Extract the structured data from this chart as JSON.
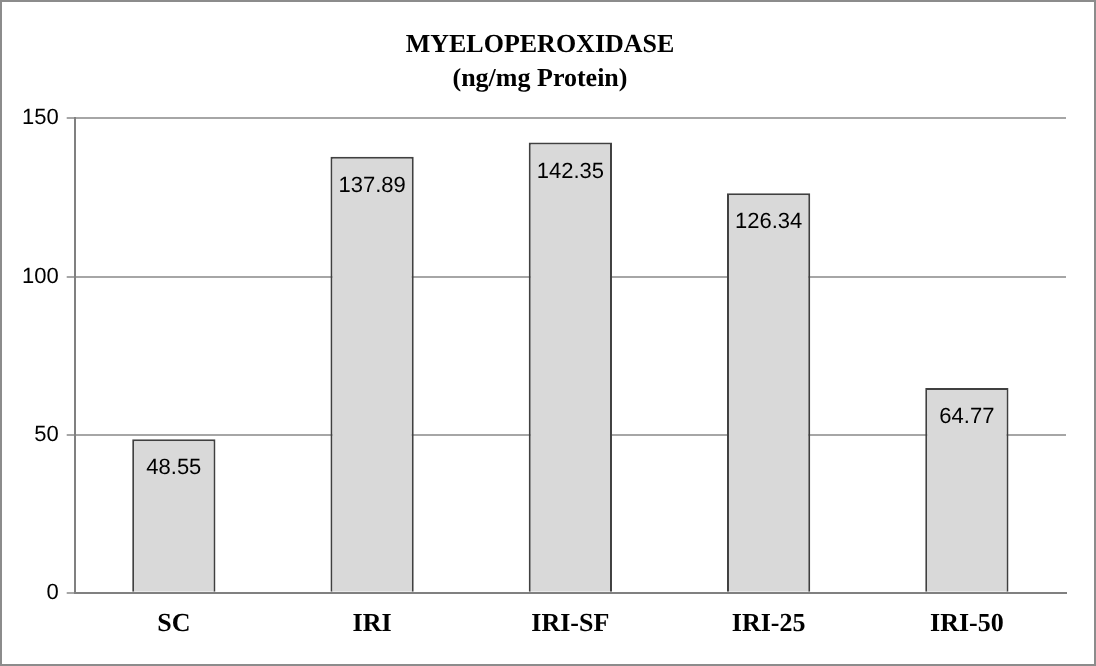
{
  "chart_data": {
    "type": "bar",
    "title": "MYELOPEROXIDASE",
    "subtitle": "(ng/mg Protein)",
    "categories": [
      "SC",
      "IRI",
      "IRI-SF",
      "IRI-25",
      "IRI-50"
    ],
    "values": [
      48.55,
      137.89,
      142.35,
      126.34,
      64.77
    ],
    "color": "#d9d9d9",
    "ylim": [
      0,
      150
    ],
    "yticks": [
      0,
      50,
      100,
      150
    ],
    "grid": "y",
    "data_labels": true
  }
}
